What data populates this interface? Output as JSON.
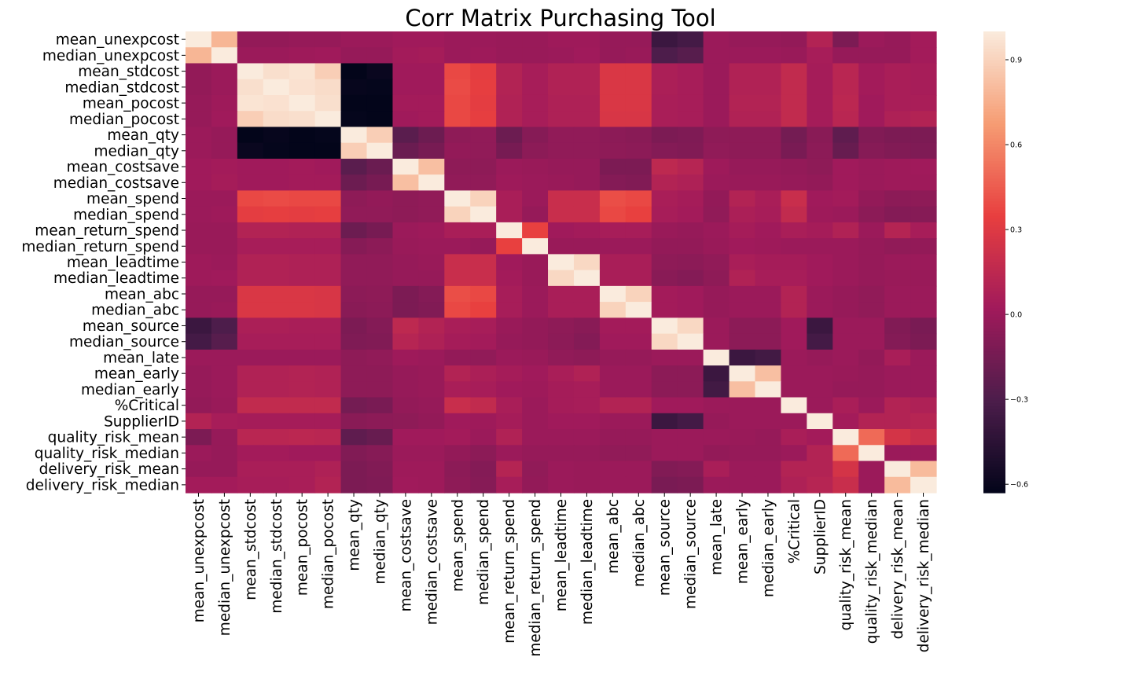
{
  "chart_data": {
    "type": "heatmap",
    "title": "Corr Matrix Purchasing Tool",
    "variables": [
      "mean_unexpcost",
      "median_unexpcost",
      "mean_stdcost",
      "median_stdcost",
      "mean_pocost",
      "median_pocost",
      "mean_qty",
      "median_qty",
      "mean_costsave",
      "median_costsave",
      "mean_spend",
      "median_spend",
      "mean_return_spend",
      "median_return_spend",
      "mean_leadtime",
      "median_leadtime",
      "mean_abc",
      "median_abc",
      "mean_source",
      "median_source",
      "mean_late",
      "mean_early",
      "median_early",
      "%Critical",
      "SupplierID",
      "quality_risk_mean",
      "quality_risk_median",
      "delivery_risk_mean",
      "delivery_risk_median"
    ],
    "matrix": [
      [
        1.0,
        0.78,
        -0.03,
        -0.03,
        -0.02,
        -0.02,
        0.0,
        0.0,
        0.02,
        0.02,
        0.0,
        0.0,
        -0.01,
        -0.01,
        0.01,
        0.01,
        -0.02,
        -0.02,
        -0.38,
        -0.34,
        0.0,
        -0.02,
        -0.02,
        -0.03,
        0.1,
        -0.12,
        0.0,
        -0.02,
        0.03
      ],
      [
        0.78,
        1.0,
        0.0,
        0.0,
        0.01,
        0.02,
        -0.02,
        -0.02,
        0.03,
        0.04,
        0.0,
        0.01,
        -0.01,
        -0.01,
        0.0,
        0.02,
        -0.02,
        -0.01,
        -0.3,
        -0.26,
        0.0,
        0.0,
        0.0,
        -0.01,
        0.05,
        -0.02,
        -0.02,
        -0.02,
        0.03
      ],
      [
        -0.03,
        0.0,
        1.0,
        0.95,
        0.97,
        0.88,
        -0.63,
        -0.6,
        0.02,
        0.02,
        0.38,
        0.33,
        0.1,
        0.05,
        0.09,
        0.09,
        0.28,
        0.28,
        0.07,
        0.05,
        0.0,
        0.09,
        0.09,
        0.17,
        0.04,
        0.13,
        0.03,
        0.06,
        0.05
      ],
      [
        -0.03,
        0.0,
        0.95,
        1.0,
        0.96,
        0.94,
        -0.61,
        -0.62,
        0.02,
        0.02,
        0.39,
        0.34,
        0.1,
        0.05,
        0.09,
        0.09,
        0.28,
        0.28,
        0.07,
        0.05,
        0.0,
        0.09,
        0.09,
        0.17,
        0.04,
        0.13,
        0.03,
        0.06,
        0.05
      ],
      [
        -0.02,
        0.01,
        0.97,
        0.96,
        1.0,
        0.95,
        -0.65,
        -0.63,
        0.03,
        0.03,
        0.38,
        0.33,
        0.09,
        0.05,
        0.08,
        0.08,
        0.28,
        0.28,
        0.06,
        0.05,
        0.0,
        0.1,
        0.1,
        0.17,
        0.04,
        0.14,
        0.02,
        0.06,
        0.06
      ],
      [
        -0.02,
        0.02,
        0.88,
        0.94,
        0.95,
        1.0,
        -0.62,
        -0.64,
        0.02,
        0.03,
        0.38,
        0.34,
        0.09,
        0.05,
        0.08,
        0.08,
        0.27,
        0.27,
        0.06,
        0.05,
        0.0,
        0.09,
        0.09,
        0.17,
        0.04,
        0.13,
        0.02,
        0.08,
        0.1
      ],
      [
        0.0,
        -0.02,
        -0.63,
        -0.61,
        -0.65,
        -0.62,
        1.0,
        0.88,
        -0.25,
        -0.18,
        -0.05,
        -0.04,
        -0.18,
        -0.08,
        -0.04,
        -0.04,
        -0.06,
        -0.07,
        -0.12,
        -0.11,
        -0.05,
        -0.05,
        -0.05,
        -0.15,
        -0.07,
        -0.23,
        -0.1,
        -0.12,
        -0.12
      ],
      [
        0.0,
        -0.02,
        -0.6,
        -0.62,
        -0.63,
        -0.64,
        0.88,
        1.0,
        -0.19,
        -0.14,
        -0.03,
        -0.04,
        -0.14,
        -0.06,
        -0.04,
        -0.04,
        -0.05,
        -0.06,
        -0.09,
        -0.1,
        -0.04,
        -0.05,
        -0.05,
        -0.13,
        -0.06,
        -0.2,
        -0.08,
        -0.1,
        -0.11
      ],
      [
        0.02,
        0.03,
        0.02,
        0.02,
        0.03,
        0.02,
        -0.25,
        -0.19,
        1.0,
        0.82,
        -0.05,
        -0.05,
        0.0,
        -0.01,
        -0.02,
        -0.02,
        -0.12,
        -0.12,
        0.15,
        0.12,
        0.01,
        -0.02,
        -0.02,
        -0.03,
        -0.05,
        0.02,
        0.0,
        0.01,
        0.02
      ],
      [
        0.02,
        0.04,
        0.02,
        0.02,
        0.03,
        0.03,
        -0.18,
        -0.14,
        0.82,
        1.0,
        -0.04,
        -0.04,
        0.01,
        0.0,
        -0.01,
        -0.02,
        -0.09,
        -0.1,
        0.1,
        0.08,
        0.0,
        -0.01,
        -0.01,
        -0.02,
        -0.03,
        0.02,
        0.0,
        0.01,
        0.01
      ],
      [
        0.0,
        0.0,
        0.38,
        0.39,
        0.38,
        0.38,
        -0.05,
        -0.03,
        -0.05,
        -0.04,
        1.0,
        0.9,
        0.06,
        0.0,
        0.2,
        0.2,
        0.4,
        0.38,
        0.06,
        0.04,
        -0.03,
        0.1,
        0.06,
        0.2,
        0.02,
        0.03,
        -0.03,
        -0.06,
        -0.05
      ],
      [
        0.0,
        0.01,
        0.33,
        0.34,
        0.33,
        0.34,
        -0.04,
        -0.04,
        -0.05,
        -0.04,
        0.9,
        1.0,
        0.06,
        -0.02,
        0.2,
        0.2,
        0.38,
        0.35,
        0.05,
        0.03,
        -0.04,
        0.07,
        0.05,
        0.17,
        0.01,
        0.0,
        -0.06,
        -0.09,
        -0.08
      ],
      [
        -0.01,
        -0.01,
        0.1,
        0.1,
        0.09,
        0.09,
        -0.18,
        -0.14,
        0.0,
        0.01,
        0.06,
        0.06,
        1.0,
        0.35,
        0.02,
        0.03,
        0.05,
        0.05,
        -0.01,
        -0.02,
        0.0,
        0.04,
        0.02,
        0.06,
        0.04,
        0.09,
        0.0,
        0.11,
        0.05
      ],
      [
        -0.01,
        -0.01,
        0.05,
        0.05,
        0.05,
        0.05,
        -0.08,
        -0.06,
        -0.01,
        0.0,
        0.0,
        -0.02,
        0.35,
        1.0,
        -0.01,
        -0.01,
        0.0,
        0.0,
        -0.03,
        -0.03,
        -0.01,
        0.02,
        0.01,
        0.0,
        0.0,
        0.0,
        -0.02,
        -0.04,
        -0.03
      ],
      [
        0.01,
        0.0,
        0.09,
        0.09,
        0.08,
        0.08,
        -0.04,
        -0.04,
        -0.02,
        -0.01,
        0.2,
        0.2,
        0.02,
        -0.01,
        1.0,
        0.92,
        0.06,
        0.06,
        -0.05,
        -0.06,
        -0.04,
        0.06,
        0.04,
        0.04,
        0.02,
        0.0,
        -0.02,
        0.0,
        0.0
      ],
      [
        0.01,
        0.02,
        0.09,
        0.09,
        0.08,
        0.08,
        -0.04,
        -0.04,
        -0.02,
        -0.02,
        0.2,
        0.2,
        0.03,
        -0.01,
        0.92,
        1.0,
        0.06,
        0.06,
        -0.07,
        -0.09,
        -0.05,
        0.09,
        0.05,
        0.05,
        0.02,
        0.0,
        -0.02,
        -0.01,
        -0.01
      ],
      [
        -0.02,
        -0.02,
        0.28,
        0.28,
        0.28,
        0.27,
        -0.06,
        -0.05,
        -0.12,
        -0.09,
        0.4,
        0.38,
        0.05,
        0.0,
        0.06,
        0.06,
        1.0,
        0.9,
        0.03,
        0.02,
        -0.02,
        0.0,
        0.0,
        0.1,
        0.0,
        -0.02,
        -0.04,
        0.0,
        0.0
      ],
      [
        -0.02,
        -0.01,
        0.28,
        0.28,
        0.28,
        0.27,
        -0.07,
        -0.06,
        -0.12,
        -0.1,
        0.38,
        0.35,
        0.05,
        0.0,
        0.06,
        0.06,
        0.9,
        1.0,
        0.03,
        0.02,
        -0.02,
        0.0,
        0.0,
        0.1,
        0.0,
        -0.02,
        -0.04,
        0.0,
        0.0
      ],
      [
        -0.38,
        -0.3,
        0.07,
        0.07,
        0.06,
        0.06,
        -0.12,
        -0.09,
        0.15,
        0.1,
        0.06,
        0.05,
        -0.01,
        -0.03,
        -0.05,
        -0.07,
        0.03,
        0.03,
        1.0,
        0.92,
        0.0,
        -0.06,
        -0.06,
        0.02,
        -0.38,
        0.0,
        0.0,
        -0.1,
        -0.13
      ],
      [
        -0.34,
        -0.26,
        0.05,
        0.05,
        0.05,
        0.05,
        -0.11,
        -0.1,
        0.12,
        0.08,
        0.04,
        0.03,
        -0.02,
        -0.03,
        -0.06,
        -0.09,
        0.02,
        0.02,
        0.92,
        1.0,
        0.0,
        -0.06,
        -0.06,
        0.02,
        -0.34,
        0.0,
        0.0,
        -0.09,
        -0.12
      ],
      [
        0.0,
        0.0,
        0.0,
        0.0,
        0.0,
        0.0,
        -0.05,
        -0.04,
        0.01,
        0.0,
        -0.03,
        -0.04,
        0.0,
        -0.01,
        -0.04,
        -0.05,
        -0.02,
        -0.02,
        0.0,
        0.0,
        1.0,
        -0.38,
        -0.35,
        0.0,
        -0.02,
        0.0,
        -0.03,
        0.06,
        0.0
      ],
      [
        -0.02,
        0.0,
        0.09,
        0.09,
        0.1,
        0.09,
        -0.05,
        -0.05,
        -0.02,
        -0.01,
        0.1,
        0.07,
        0.04,
        0.02,
        0.06,
        0.09,
        0.0,
        0.0,
        -0.06,
        -0.06,
        -0.38,
        1.0,
        0.82,
        0.0,
        0.0,
        -0.01,
        -0.02,
        0.0,
        0.0
      ],
      [
        -0.02,
        0.0,
        0.09,
        0.09,
        0.1,
        0.09,
        -0.05,
        -0.05,
        -0.02,
        -0.01,
        0.06,
        0.05,
        0.02,
        0.01,
        0.04,
        0.05,
        0.0,
        0.0,
        -0.06,
        -0.06,
        -0.35,
        0.82,
        1.0,
        0.0,
        0.0,
        -0.02,
        -0.02,
        0.0,
        0.0
      ],
      [
        -0.03,
        -0.01,
        0.17,
        0.17,
        0.17,
        0.17,
        -0.15,
        -0.13,
        -0.03,
        -0.02,
        0.2,
        0.17,
        0.06,
        0.0,
        0.04,
        0.05,
        0.1,
        0.1,
        0.02,
        0.02,
        0.0,
        0.0,
        0.0,
        1.0,
        0.0,
        0.06,
        0.0,
        0.1,
        0.08
      ],
      [
        0.1,
        0.05,
        0.04,
        0.04,
        0.04,
        0.04,
        -0.07,
        -0.06,
        -0.05,
        -0.03,
        0.02,
        0.01,
        0.04,
        0.0,
        0.02,
        0.02,
        0.0,
        0.0,
        -0.38,
        -0.34,
        -0.02,
        0.0,
        0.0,
        0.0,
        1.0,
        0.03,
        0.1,
        0.1,
        0.12
      ],
      [
        -0.12,
        -0.02,
        0.13,
        0.13,
        0.14,
        0.13,
        -0.23,
        -0.2,
        0.02,
        0.02,
        0.03,
        0.0,
        0.09,
        0.0,
        0.0,
        0.0,
        -0.02,
        -0.02,
        0.0,
        0.0,
        0.0,
        -0.01,
        -0.02,
        0.06,
        0.03,
        1.0,
        0.5,
        0.25,
        0.2
      ],
      [
        0.0,
        -0.02,
        0.03,
        0.03,
        0.02,
        0.02,
        -0.1,
        -0.08,
        0.0,
        0.0,
        -0.03,
        -0.06,
        0.0,
        -0.02,
        -0.02,
        -0.02,
        -0.04,
        -0.04,
        0.0,
        0.0,
        -0.03,
        -0.02,
        -0.02,
        0.0,
        0.1,
        0.5,
        1.0,
        0.0,
        0.0
      ],
      [
        -0.02,
        -0.02,
        0.06,
        0.06,
        0.06,
        0.08,
        -0.12,
        -0.1,
        0.01,
        0.01,
        -0.06,
        -0.09,
        0.11,
        -0.04,
        0.0,
        -0.01,
        0.0,
        0.0,
        -0.1,
        -0.09,
        0.06,
        0.0,
        0.0,
        0.1,
        0.1,
        0.25,
        0.0,
        1.0,
        0.8
      ],
      [
        0.03,
        0.03,
        0.05,
        0.05,
        0.06,
        0.1,
        -0.12,
        -0.11,
        0.02,
        0.01,
        -0.05,
        -0.08,
        0.05,
        -0.03,
        0.0,
        -0.01,
        0.0,
        0.0,
        -0.13,
        -0.12,
        0.0,
        0.0,
        0.0,
        0.08,
        0.12,
        0.2,
        0.0,
        0.8,
        1.0
      ]
    ],
    "vmin": -0.63,
    "vmax": 1.0,
    "colorbar": {
      "ticks": [
        0.9,
        0.6,
        0.3,
        0.0,
        -0.3,
        -0.6
      ],
      "tick_labels": [
        "0.9",
        "0.6",
        "0.3",
        "0.0",
        "−0.3",
        "−0.6"
      ]
    },
    "colormap": [
      "#03051a",
      "#4c1d4b",
      "#a11a5b",
      "#e83f3f",
      "#f69c73",
      "#faebdd"
    ],
    "xlabel": "",
    "ylabel": ""
  }
}
